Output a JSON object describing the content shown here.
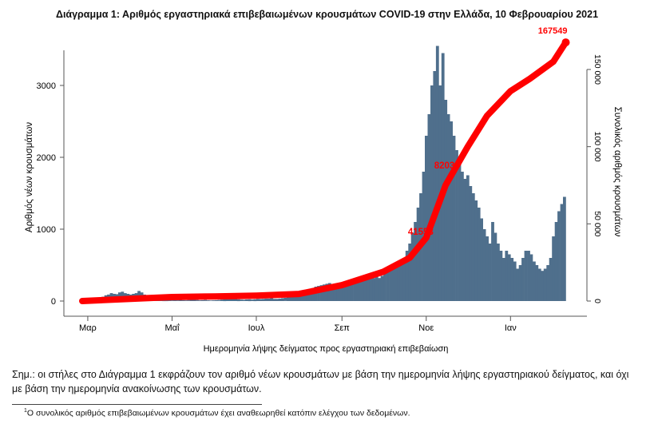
{
  "title": "Διάγραμμα 1: Αριθμός εργαστηριακά επιβεβαιωμένων κρουσμάτων COVID-19 στην Ελλάδα, 10 Φεβρουαρίου 2021",
  "note_line1": "Σημ.: οι στήλες στο Διάγραμμα 1 εκφράζουν τον αριθμό νέων κρουσμάτων με βάση την ημερομηνία λήψης εργαστηριακού δείγματος, και όχι",
  "note_line2": "με βάση την ημερομηνία ανακοίνωσης των κρουσμάτων.",
  "footnote_mark": "1",
  "footnote": "Ο συνολικός αριθμός επιβεβαιωμένων κρουσμάτων έχει αναθεωρηθεί κατόπιν ελέγχου των δεδομένων.",
  "chart_data": {
    "type": "bar+line",
    "xlabel": "Ημερομηνία λήψης δείγματος προς εργαστηριακή επιβεβαίωση",
    "ylabel_left": "Αριθμός νέων κρουσμάτων",
    "ylabel_right": "Συνολικός αριθμός κρουσμάτων",
    "x_ticks": [
      {
        "date": "2020-03-01",
        "label": "Μαρ"
      },
      {
        "date": "2020-05-01",
        "label": "Μαΐ"
      },
      {
        "date": "2020-07-01",
        "label": "Ιουλ"
      },
      {
        "date": "2020-09-01",
        "label": "Σεπ"
      },
      {
        "date": "2020-11-01",
        "label": "Νοε"
      },
      {
        "date": "2021-01-01",
        "label": "Ιαν"
      }
    ],
    "y_left_ticks": [
      {
        "v": 0,
        "label": "0"
      },
      {
        "v": 1000,
        "label": "1000"
      },
      {
        "v": 2000,
        "label": "2000"
      },
      {
        "v": 3000,
        "label": "3000"
      }
    ],
    "y_right_ticks": [
      {
        "v": 0,
        "label": "0"
      },
      {
        "v": 50000,
        "label": "50 000"
      },
      {
        "v": 100000,
        "label": "100 000"
      },
      {
        "v": 150000,
        "label": "150 000"
      }
    ],
    "bar_color": "#4f6f8c",
    "line_color": "#ff0000",
    "bars": {
      "start_date": "2020-02-26",
      "interval_days": 2,
      "name": "new cases",
      "values": [
        2,
        3,
        5,
        10,
        20,
        30,
        45,
        60,
        80,
        90,
        110,
        100,
        95,
        120,
        130,
        110,
        100,
        90,
        100,
        110,
        140,
        120,
        90,
        80,
        60,
        50,
        40,
        35,
        30,
        25,
        25,
        20,
        15,
        12,
        15,
        20,
        12,
        10,
        15,
        18,
        20,
        15,
        10,
        12,
        15,
        10,
        8,
        10,
        12,
        15,
        20,
        25,
        30,
        35,
        40,
        30,
        25,
        20,
        18,
        22,
        25,
        20,
        25,
        30,
        28,
        30,
        35,
        35,
        40,
        30,
        30,
        35,
        40,
        45,
        50,
        60,
        60,
        70,
        80,
        100,
        110,
        130,
        160,
        180,
        200,
        210,
        220,
        230,
        240,
        250,
        220,
        240,
        230,
        230,
        250,
        260,
        270,
        280,
        250,
        300,
        320,
        300,
        290,
        310,
        330,
        320,
        340,
        320,
        350,
        380,
        400,
        420,
        460,
        480,
        520,
        560,
        600,
        700,
        800,
        950,
        1100,
        1300,
        1500,
        1800,
        2300,
        2600,
        3000,
        3200,
        3550,
        3000,
        3450,
        2800,
        2600,
        2500,
        2300,
        2100,
        1900,
        1800,
        1700,
        1750,
        1600,
        1500,
        1400,
        1300,
        1150,
        1000,
        900,
        800,
        1100,
        950,
        800,
        700,
        600,
        700,
        650,
        600,
        550,
        450,
        500,
        600,
        700,
        700,
        650,
        550,
        500,
        450,
        420,
        450,
        500,
        600,
        900,
        1100,
        1250,
        1350,
        1450
      ]
    },
    "cumulative": {
      "name": "total cases",
      "points": [
        [
          "2020-02-26",
          0
        ],
        [
          "2020-04-01",
          1400
        ],
        [
          "2020-05-01",
          2600
        ],
        [
          "2020-06-01",
          3000
        ],
        [
          "2020-07-01",
          3500
        ],
        [
          "2020-08-01",
          4600
        ],
        [
          "2020-09-01",
          10300
        ],
        [
          "2020-10-01",
          19000
        ],
        [
          "2020-10-20",
          28000
        ],
        [
          "2020-11-01",
          41000
        ],
        [
          "2020-11-15",
          75000
        ],
        [
          "2020-12-01",
          100000
        ],
        [
          "2020-12-15",
          120000
        ],
        [
          "2021-01-01",
          136000
        ],
        [
          "2021-01-15",
          144000
        ],
        [
          "2021-02-01",
          155000
        ],
        [
          "2021-02-10",
          167549
        ]
      ]
    },
    "annotations": [
      {
        "date": "2020-10-28",
        "value": 45000,
        "label": "41558"
      },
      {
        "date": "2020-11-16",
        "value": 88000,
        "label": "82033"
      },
      {
        "date": "2021-02-10",
        "value": 167549,
        "label": "167549"
      }
    ]
  }
}
